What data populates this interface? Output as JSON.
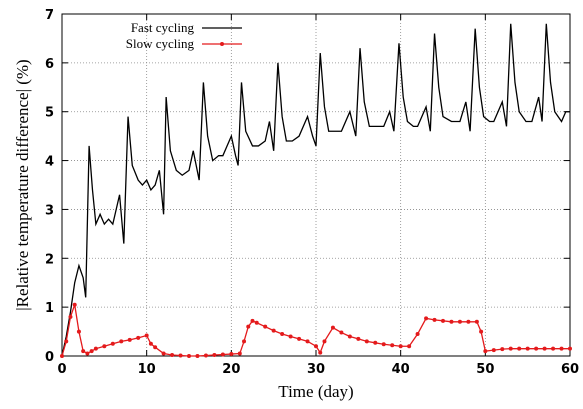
{
  "chart_data": {
    "type": "line",
    "xlabel": "Time (day)",
    "ylabel": "|Relative temperature difference| (%)",
    "xlim": [
      0,
      60
    ],
    "xticks": [
      0,
      10,
      20,
      30,
      40,
      50,
      60
    ],
    "ylim": [
      0,
      7
    ],
    "yticks": [
      0,
      1,
      2,
      3,
      4,
      5,
      6,
      7
    ],
    "grid": true,
    "legend": "upper left",
    "series": [
      {
        "name": "Fast cycling",
        "color": "#000000",
        "marker": "none",
        "x": [
          0,
          0.5,
          1,
          1.5,
          2,
          2.5,
          2.8,
          3.2,
          3.6,
          4,
          4.5,
          5,
          5.5,
          6,
          6.8,
          7.3,
          7.8,
          8.3,
          9,
          9.5,
          10,
          10.5,
          11,
          11.5,
          12,
          12.3,
          12.8,
          13.5,
          14.2,
          15,
          15.5,
          16.2,
          16.7,
          17.2,
          17.8,
          18.5,
          19,
          19.5,
          20,
          20.5,
          20.8,
          21.2,
          21.7,
          22.5,
          23.2,
          24,
          24.5,
          25,
          25.5,
          26,
          26.5,
          27.2,
          28,
          29,
          29.6,
          30,
          30.5,
          31,
          31.5,
          32.3,
          33,
          34,
          34.7,
          35.2,
          35.7,
          36.3,
          37.2,
          38,
          38.7,
          39.2,
          39.8,
          40.3,
          40.8,
          41.5,
          42,
          43,
          43.5,
          44,
          44.5,
          45,
          46,
          47,
          47.7,
          48.2,
          48.8,
          49.3,
          49.8,
          50.5,
          51,
          52,
          52.5,
          53,
          53.5,
          54,
          54.8,
          55.5,
          56.3,
          56.7,
          57.2,
          57.7,
          58.2,
          59,
          59.5,
          60
        ],
        "values": [
          0,
          0.4,
          0.9,
          1.5,
          1.85,
          1.6,
          1.2,
          4.3,
          3.4,
          2.7,
          2.9,
          2.7,
          2.8,
          2.7,
          3.3,
          2.3,
          4.9,
          3.9,
          3.6,
          3.5,
          3.6,
          3.4,
          3.5,
          3.8,
          2.9,
          5.3,
          4.2,
          3.8,
          3.7,
          3.8,
          4.2,
          3.6,
          5.6,
          4.5,
          4.0,
          4.1,
          4.1,
          4.3,
          4.5,
          4.1,
          3.9,
          5.6,
          4.6,
          4.3,
          4.3,
          4.4,
          4.8,
          4.2,
          6.0,
          4.9,
          4.4,
          4.4,
          4.5,
          4.9,
          4.5,
          4.3,
          6.2,
          5.1,
          4.6,
          4.6,
          4.6,
          5.0,
          4.5,
          6.3,
          5.2,
          4.7,
          4.7,
          4.7,
          5.0,
          4.6,
          6.4,
          5.3,
          4.8,
          4.7,
          4.7,
          5.1,
          4.6,
          6.6,
          5.5,
          4.9,
          4.8,
          4.8,
          5.2,
          4.6,
          6.7,
          5.5,
          4.9,
          4.8,
          4.8,
          5.2,
          4.7,
          6.8,
          5.6,
          5.0,
          4.8,
          4.8,
          5.3,
          4.8,
          6.8,
          5.6,
          5.0,
          4.8,
          5.0,
          5.0
        ]
      },
      {
        "name": "Slow cycling",
        "color": "#e41a1c",
        "marker": "circle",
        "x": [
          0,
          0.5,
          1,
          1.5,
          2,
          2.5,
          3,
          3.5,
          4,
          5,
          6,
          7,
          8,
          9,
          10,
          10.5,
          11,
          12,
          13,
          14,
          15,
          16,
          17,
          18,
          19,
          20,
          21,
          21.5,
          22,
          22.5,
          23,
          24,
          25,
          26,
          27,
          28,
          29,
          30,
          30.5,
          31,
          32,
          33,
          34,
          35,
          36,
          37,
          38,
          39,
          40,
          41,
          42,
          43,
          44,
          45,
          46,
          47,
          48,
          49,
          49.5,
          50,
          51,
          52,
          53,
          54,
          55,
          56,
          57,
          58,
          59,
          60
        ],
        "values": [
          0,
          0.3,
          0.8,
          1.05,
          0.5,
          0.1,
          0.05,
          0.1,
          0.15,
          0.2,
          0.25,
          0.3,
          0.33,
          0.37,
          0.42,
          0.25,
          0.18,
          0.05,
          0.02,
          0.01,
          0,
          0,
          0.01,
          0.02,
          0.03,
          0.04,
          0.05,
          0.3,
          0.6,
          0.72,
          0.68,
          0.6,
          0.52,
          0.45,
          0.4,
          0.35,
          0.3,
          0.2,
          0.07,
          0.3,
          0.58,
          0.48,
          0.4,
          0.35,
          0.3,
          0.27,
          0.24,
          0.22,
          0.2,
          0.2,
          0.45,
          0.77,
          0.74,
          0.72,
          0.7,
          0.7,
          0.7,
          0.7,
          0.5,
          0.1,
          0.12,
          0.14,
          0.15,
          0.15,
          0.15,
          0.15,
          0.15,
          0.15,
          0.15,
          0.15
        ]
      }
    ]
  }
}
